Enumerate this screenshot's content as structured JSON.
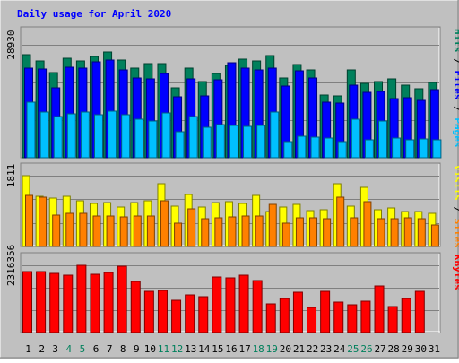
{
  "title": "Daily usage for April 2020",
  "colors": {
    "background": "#c0c0c0",
    "title": "#0000ff",
    "hits": "#00805c",
    "files": "#0000ff",
    "pages": "#00c0ff",
    "visits": "#ffff00",
    "sites": "#ff8000",
    "kbytes": "#ff0000",
    "gridline": "#808080",
    "day_label_weekday": "#000000",
    "day_label_weekend": "#00805c"
  },
  "chart_data": {
    "type": "bar",
    "x": [
      1,
      2,
      3,
      4,
      5,
      6,
      7,
      8,
      9,
      10,
      11,
      12,
      13,
      14,
      15,
      16,
      17,
      18,
      19,
      20,
      21,
      22,
      23,
      24,
      25,
      26,
      27,
      28,
      29,
      30,
      31
    ],
    "weekend_days": [
      4,
      5,
      11,
      12,
      18,
      19,
      25,
      26
    ],
    "panels": [
      {
        "id": "hits-files-pages",
        "ymax_label": "28930",
        "ymax": 28930,
        "legend": [
          {
            "label": "Hits",
            "color_key": "hits"
          },
          {
            "label": "Files",
            "color_key": "files"
          },
          {
            "label": "Pages",
            "color_key": "pages"
          }
        ],
        "separator": " / ",
        "series": [
          {
            "name": "Hits",
            "values": [
              26500,
              24700,
              21900,
              25500,
              24700,
              26000,
              27000,
              25100,
              22900,
              24100,
              24100,
              18000,
              22900,
              19500,
              21500,
              23700,
              25300,
              24900,
              26200,
              20500,
              23900,
              22600,
              16100,
              15900,
              22600,
              19000,
              19500,
              20100,
              18600,
              17600,
              19400
            ]
          },
          {
            "name": "Files",
            "values": [
              22900,
              22800,
              17900,
              23300,
              22900,
              24500,
              25000,
              22600,
              20500,
              20300,
              21600,
              15700,
              20200,
              15900,
              19900,
              24300,
              22900,
              22600,
              23000,
              18300,
              22200,
              20500,
              14300,
              13900,
              18700,
              16800,
              17000,
              15100,
              15300,
              14600,
              17400
            ]
          },
          {
            "name": "Pages",
            "values": [
              14300,
              11600,
              10500,
              11300,
              11700,
              11100,
              12000,
              11000,
              9800,
              9400,
              11400,
              6700,
              10500,
              7700,
              8500,
              8200,
              8000,
              8300,
              11800,
              4200,
              5400,
              5300,
              5000,
              4200,
              9900,
              4500,
              9300,
              5100,
              4700,
              4900,
              4700
            ]
          }
        ]
      },
      {
        "id": "visits-sites",
        "ymax_label": "1811",
        "ymax": 1811,
        "legend": [
          {
            "label": "Visits",
            "color_key": "visits"
          },
          {
            "label": "Sites",
            "color_key": "sites"
          }
        ],
        "separator": " / ",
        "series": [
          {
            "name": "Visits",
            "values": [
              1800,
              1280,
              1240,
              1280,
              1180,
              1090,
              1120,
              1000,
              1120,
              1180,
              1600,
              1030,
              1320,
              1010,
              1130,
              1140,
              1110,
              1300,
              900,
              1010,
              1080,
              910,
              940,
              1610,
              1040,
              1520,
              940,
              990,
              900,
              900,
              840
            ]
          },
          {
            "name": "Sites",
            "values": [
              1310,
              1260,
              810,
              840,
              840,
              770,
              790,
              750,
              790,
              790,
              1160,
              590,
              960,
              710,
              740,
              750,
              770,
              780,
              1080,
              600,
              730,
              730,
              700,
              1250,
              740,
              1150,
              700,
              720,
              730,
              710,
              550
            ]
          }
        ]
      },
      {
        "id": "kbytes",
        "ymax_label": "2316356",
        "ymax": 2316356,
        "legend": [
          {
            "label": "KBytes",
            "color_key": "kbytes"
          }
        ],
        "separator": "",
        "series": [
          {
            "name": "KBytes",
            "values": [
              2100000,
              2090000,
              2050000,
              1980000,
              2316356,
              2020000,
              2060000,
              2280000,
              1760000,
              1410000,
              1460000,
              1100000,
              1300000,
              1240000,
              1930000,
              1880000,
              1990000,
              1780000,
              1000000,
              1180000,
              1390000,
              870000,
              1430000,
              1050000,
              950000,
              1080000,
              1600000,
              910000,
              1170000,
              1410000,
              0
            ]
          }
        ]
      }
    ]
  }
}
